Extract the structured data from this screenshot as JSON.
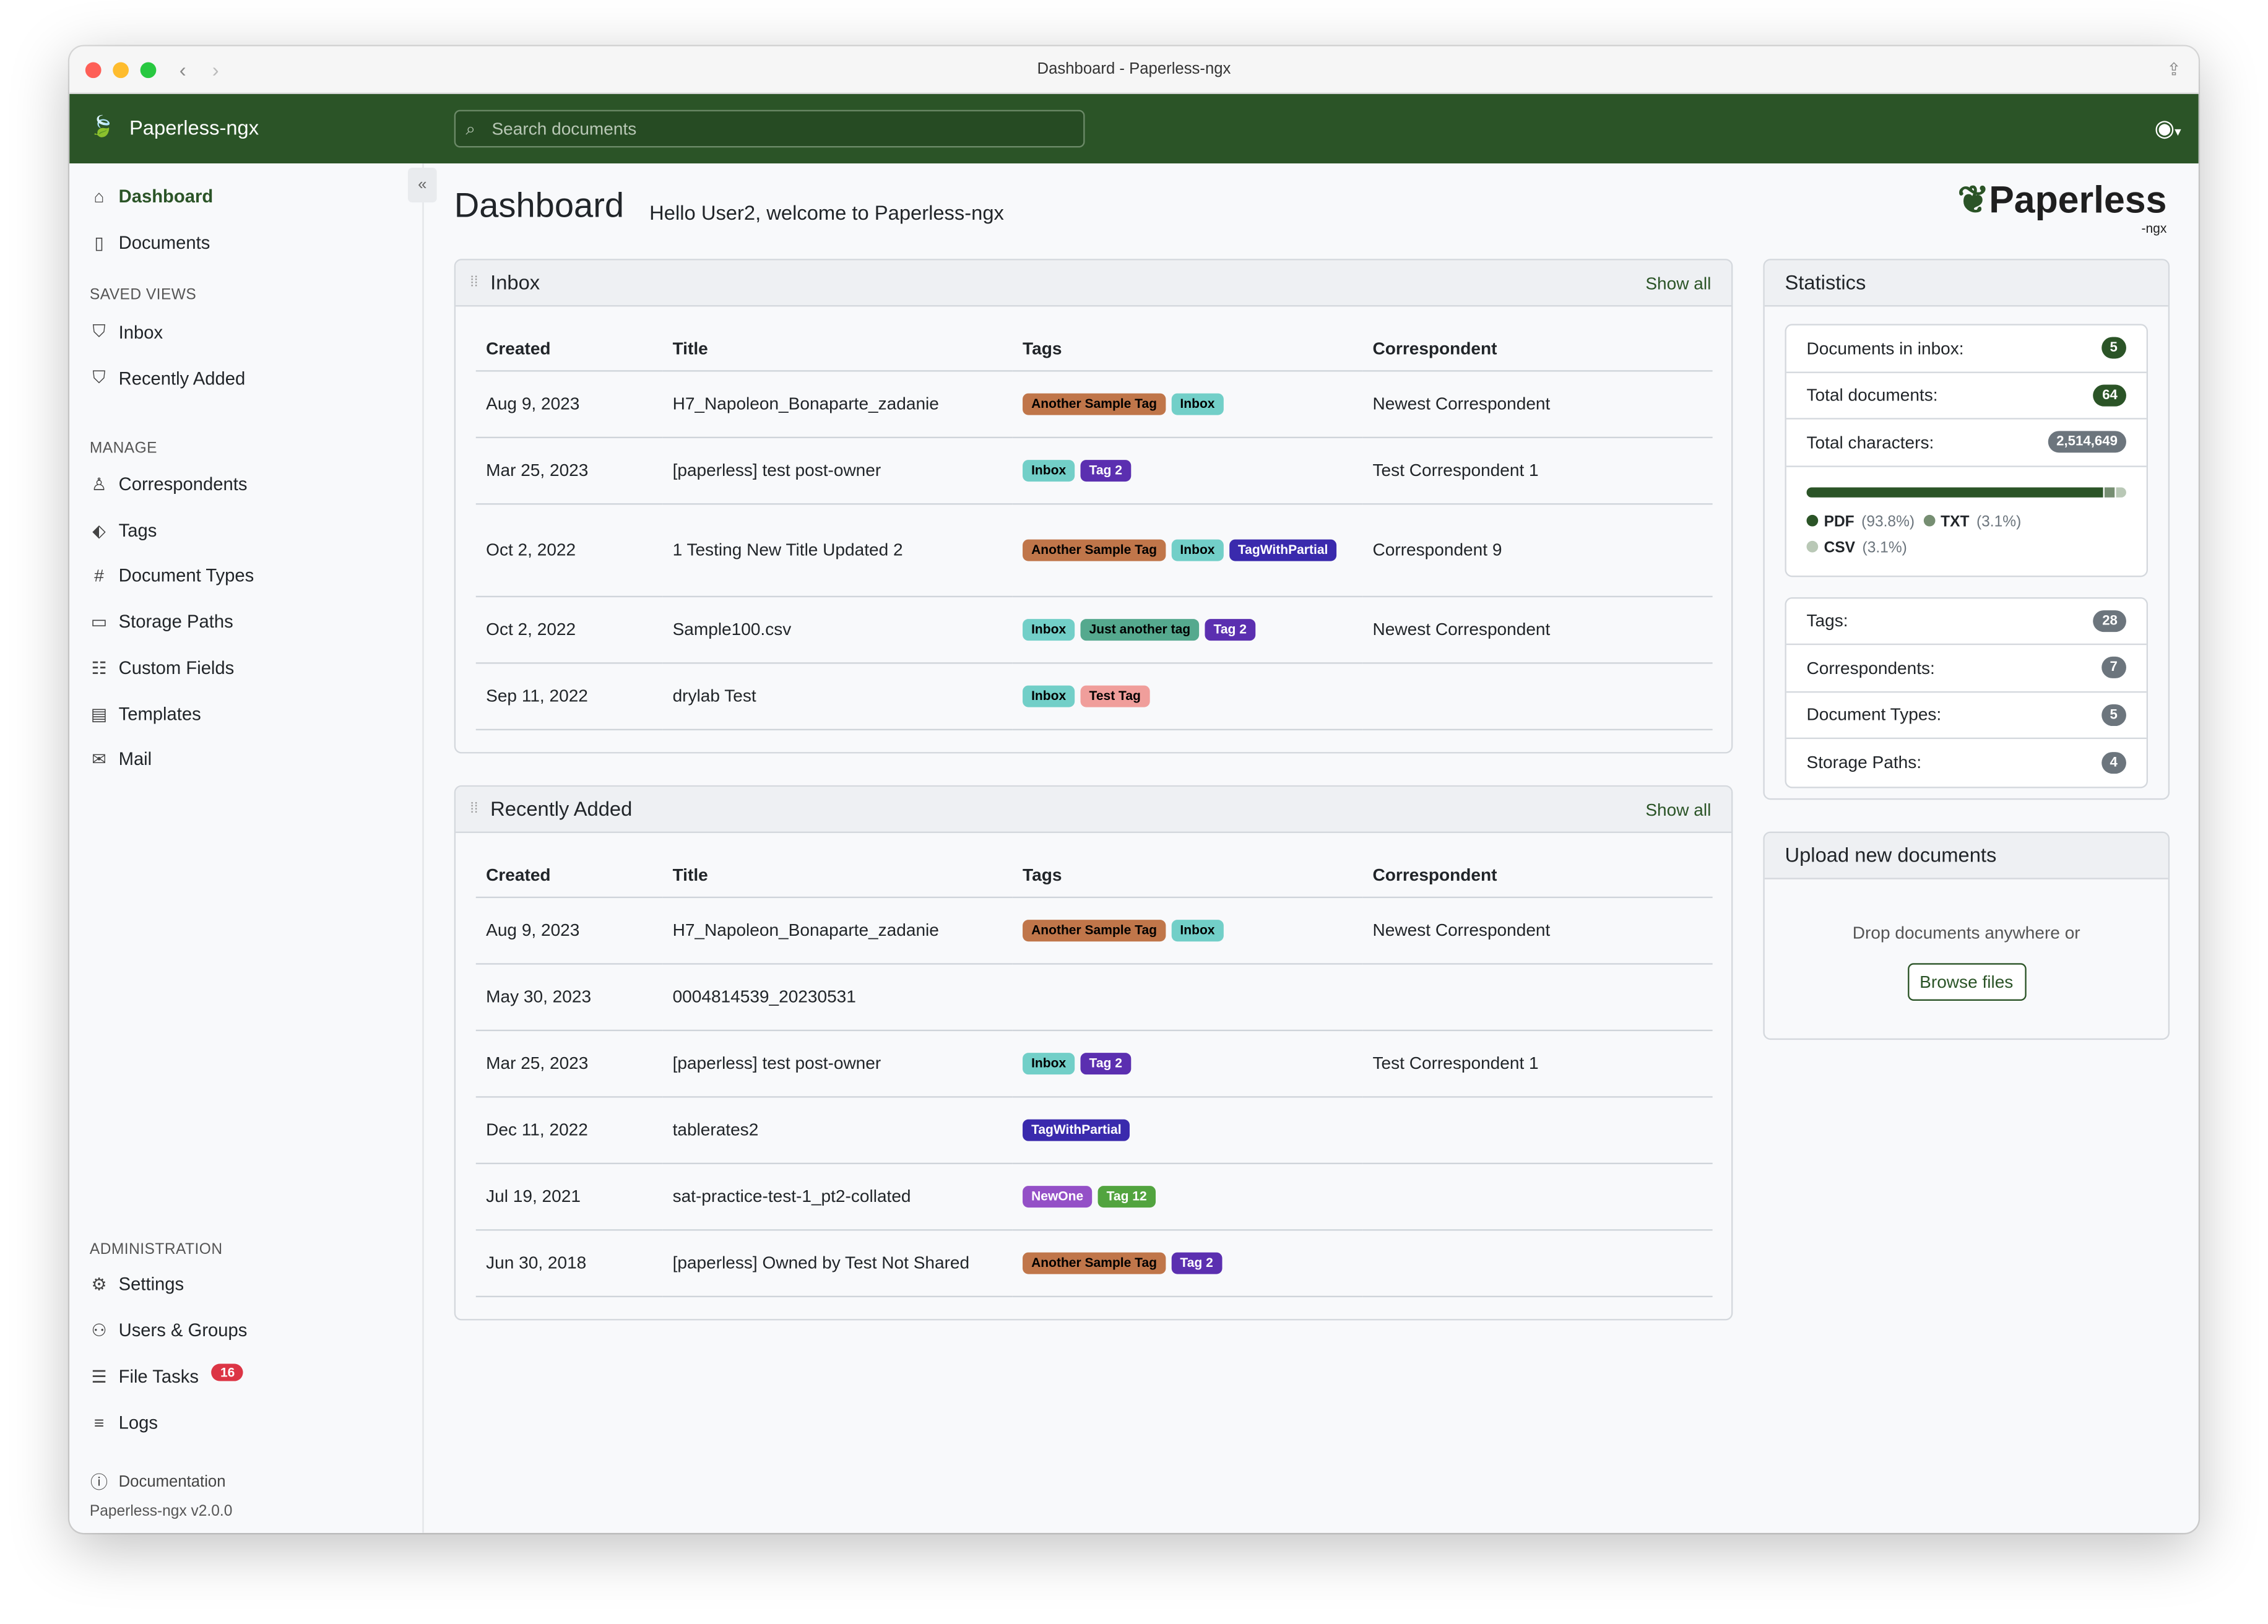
{
  "window_title": "Dashboard - Paperless-ngx",
  "brand": "Paperless-ngx",
  "search_placeholder": "Search documents",
  "sidebar": {
    "nav": [
      {
        "label": "Dashboard",
        "icon": "house-icon"
      },
      {
        "label": "Documents",
        "icon": "file-icon"
      }
    ],
    "saved_views_heading": "SAVED VIEWS",
    "saved_views": [
      {
        "label": "Inbox"
      },
      {
        "label": "Recently Added"
      }
    ],
    "manage_heading": "MANAGE",
    "manage": [
      {
        "label": "Correspondents",
        "icon": "person-icon"
      },
      {
        "label": "Tags",
        "icon": "tag-icon"
      },
      {
        "label": "Document Types",
        "icon": "hash-icon"
      },
      {
        "label": "Storage Paths",
        "icon": "folder-icon"
      },
      {
        "label": "Custom Fields",
        "icon": "ui-radios-icon"
      },
      {
        "label": "Templates",
        "icon": "template-icon"
      },
      {
        "label": "Mail",
        "icon": "envelope-icon"
      }
    ],
    "admin_heading": "ADMINISTRATION",
    "admin": [
      {
        "label": "Settings",
        "icon": "gear-icon"
      },
      {
        "label": "Users & Groups",
        "icon": "people-icon"
      },
      {
        "label": "File Tasks",
        "icon": "list-task-icon",
        "badge": "16"
      },
      {
        "label": "Logs",
        "icon": "text-left-icon"
      }
    ],
    "documentation": "Documentation",
    "version": "Paperless-ngx v2.0.0"
  },
  "main": {
    "title": "Dashboard",
    "greeting": "Hello User2, welcome to Paperless-ngx",
    "logo_text": "Paperless",
    "logo_sub": "-ngx"
  },
  "tag_colors": {
    "Another Sample Tag": [
      "#c0764a",
      "#000"
    ],
    "Inbox": [
      "#72cfc8",
      "#000"
    ],
    "Tag 2": [
      "#5b2fb0",
      "#fff"
    ],
    "TagWithPartial": [
      "#3a2aad",
      "#fff"
    ],
    "Just another tag": [
      "#55a98e",
      "#000"
    ],
    "Test Tag": [
      "#f09e9b",
      "#000"
    ],
    "NewOne": [
      "#9450c7",
      "#fff"
    ],
    "Tag 12": [
      "#52a43f",
      "#fff"
    ]
  },
  "columns": [
    "Created",
    "Title",
    "Tags",
    "Correspondent"
  ],
  "inbox": {
    "title": "Inbox",
    "show_all": "Show all",
    "rows": [
      {
        "created": "Aug 9, 2023",
        "title": "H7_Napoleon_Bonaparte_zadanie",
        "tags": [
          "Another Sample Tag",
          "Inbox"
        ],
        "correspondent": "Newest Correspondent"
      },
      {
        "created": "Mar 25, 2023",
        "title": "[paperless] test post-owner",
        "tags": [
          "Inbox",
          "Tag 2"
        ],
        "correspondent": "Test Correspondent 1"
      },
      {
        "created": "Oct 2, 2022",
        "title": "1 Testing New Title Updated 2",
        "tags": [
          "Another Sample Tag",
          "Inbox",
          "TagWithPartial"
        ],
        "correspondent": "Correspondent 9"
      },
      {
        "created": "Oct 2, 2022",
        "title": "Sample100.csv",
        "tags": [
          "Inbox",
          "Just another tag",
          "Tag 2"
        ],
        "correspondent": "Newest Correspondent"
      },
      {
        "created": "Sep 11, 2022",
        "title": "drylab Test",
        "tags": [
          "Inbox",
          "Test Tag"
        ],
        "correspondent": ""
      }
    ]
  },
  "recent": {
    "title": "Recently Added",
    "show_all": "Show all",
    "rows": [
      {
        "created": "Aug 9, 2023",
        "title": "H7_Napoleon_Bonaparte_zadanie",
        "tags": [
          "Another Sample Tag",
          "Inbox"
        ],
        "correspondent": "Newest Correspondent"
      },
      {
        "created": "May 30, 2023",
        "title": "0004814539_20230531",
        "tags": [],
        "correspondent": ""
      },
      {
        "created": "Mar 25, 2023",
        "title": "[paperless] test post-owner",
        "tags": [
          "Inbox",
          "Tag 2"
        ],
        "correspondent": "Test Correspondent 1"
      },
      {
        "created": "Dec 11, 2022",
        "title": "tablerates2",
        "tags": [
          "TagWithPartial"
        ],
        "correspondent": ""
      },
      {
        "created": "Jul 19, 2021",
        "title": "sat-practice-test-1_pt2-collated",
        "tags": [
          "NewOne",
          "Tag 12"
        ],
        "correspondent": ""
      },
      {
        "created": "Jun 30, 2018",
        "title": "[paperless] Owned by Test Not Shared",
        "tags": [
          "Another Sample Tag",
          "Tag 2"
        ],
        "correspondent": ""
      }
    ]
  },
  "statistics": {
    "title": "Statistics",
    "top": [
      {
        "label": "Documents in inbox:",
        "value": "5",
        "color": "#2b5427"
      },
      {
        "label": "Total documents:",
        "value": "64",
        "color": "#2b5427"
      },
      {
        "label": "Total characters:",
        "value": "2,514,649",
        "color": "#6c757d"
      }
    ],
    "file_types": [
      {
        "name": "PDF",
        "percent": 93.8,
        "label": "(93.8%)",
        "color": "#2b5427"
      },
      {
        "name": "TXT",
        "percent": 3.1,
        "label": "(3.1%)",
        "color": "#768e72"
      },
      {
        "name": "CSV",
        "percent": 3.1,
        "label": "(3.1%)",
        "color": "#b9c8b6"
      }
    ],
    "bottom": [
      {
        "label": "Tags:",
        "value": "28"
      },
      {
        "label": "Correspondents:",
        "value": "7"
      },
      {
        "label": "Document Types:",
        "value": "5"
      },
      {
        "label": "Storage Paths:",
        "value": "4"
      }
    ]
  },
  "upload": {
    "title": "Upload new documents",
    "drop_text": "Drop documents anywhere or",
    "browse": "Browse files"
  }
}
